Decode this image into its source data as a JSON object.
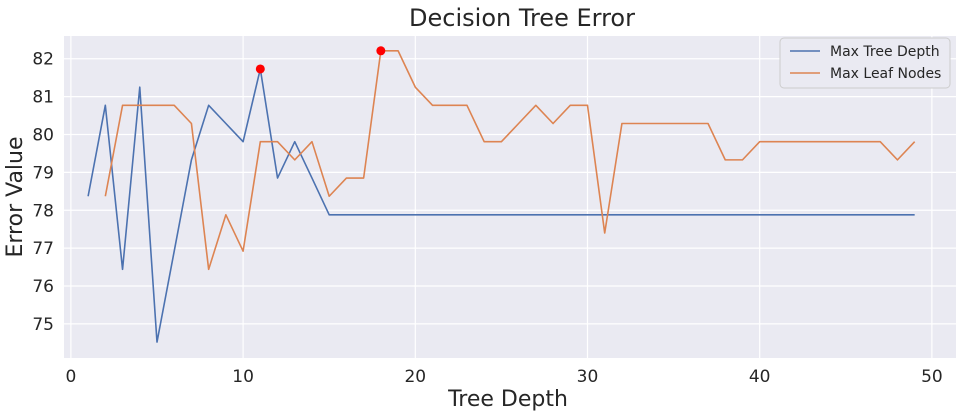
{
  "chart_data": {
    "type": "line",
    "title": "Decision Tree Error",
    "xlabel": "Tree Depth",
    "ylabel": "Error Value",
    "xlim": [
      -0.4,
      51.4
    ],
    "ylim": [
      74.1,
      82.6
    ],
    "xticks": [
      0,
      10,
      20,
      30,
      40,
      50
    ],
    "yticks": [
      75,
      76,
      77,
      78,
      79,
      80,
      81,
      82
    ],
    "grid": true,
    "legend_position": "top-right",
    "series": [
      {
        "name": "Max Tree Depth",
        "color": "#4c72b0",
        "x": [
          1,
          2,
          3,
          4,
          5,
          6,
          7,
          8,
          9,
          10,
          11,
          12,
          13,
          14,
          15,
          16,
          17,
          18,
          19,
          20,
          21,
          22,
          23,
          24,
          25,
          26,
          27,
          28,
          29,
          30,
          31,
          32,
          33,
          34,
          35,
          36,
          37,
          38,
          39,
          40,
          41,
          42,
          43,
          44,
          45,
          46,
          47,
          48,
          49
        ],
        "y": [
          78.37,
          80.77,
          76.44,
          81.25,
          74.52,
          76.92,
          79.33,
          80.77,
          80.29,
          79.81,
          81.73,
          78.85,
          79.81,
          78.85,
          77.88,
          77.88,
          77.88,
          77.88,
          77.88,
          77.88,
          77.88,
          77.88,
          77.88,
          77.88,
          77.88,
          77.88,
          77.88,
          77.88,
          77.88,
          77.88,
          77.88,
          77.88,
          77.88,
          77.88,
          77.88,
          77.88,
          77.88,
          77.88,
          77.88,
          77.88,
          77.88,
          77.88,
          77.88,
          77.88,
          77.88,
          77.88,
          77.88,
          77.88,
          77.88
        ]
      },
      {
        "name": "Max Leaf Nodes",
        "color": "#dd8452",
        "x": [
          2,
          3,
          4,
          5,
          6,
          7,
          8,
          9,
          10,
          11,
          12,
          13,
          14,
          15,
          16,
          17,
          18,
          19,
          20,
          21,
          22,
          23,
          24,
          25,
          26,
          27,
          28,
          29,
          30,
          31,
          32,
          33,
          34,
          35,
          36,
          37,
          38,
          39,
          40,
          41,
          42,
          43,
          44,
          45,
          46,
          47,
          48,
          49
        ],
        "y": [
          78.37,
          80.77,
          80.77,
          80.77,
          80.77,
          80.29,
          76.44,
          77.88,
          76.92,
          79.81,
          79.81,
          79.33,
          79.81,
          78.37,
          78.85,
          78.85,
          82.21,
          82.21,
          81.25,
          80.77,
          80.77,
          80.77,
          79.81,
          79.81,
          80.29,
          80.77,
          80.29,
          80.77,
          80.77,
          77.4,
          80.29,
          80.29,
          80.29,
          80.29,
          80.29,
          80.29,
          79.33,
          79.33,
          79.81,
          79.81,
          79.81,
          79.81,
          79.81,
          79.81,
          79.81,
          79.81,
          79.33,
          79.81
        ]
      }
    ],
    "highlight_points": [
      {
        "x": 11,
        "y": 81.73,
        "color": "#ff0000"
      },
      {
        "x": 18,
        "y": 82.21,
        "color": "#ff0000"
      }
    ]
  }
}
